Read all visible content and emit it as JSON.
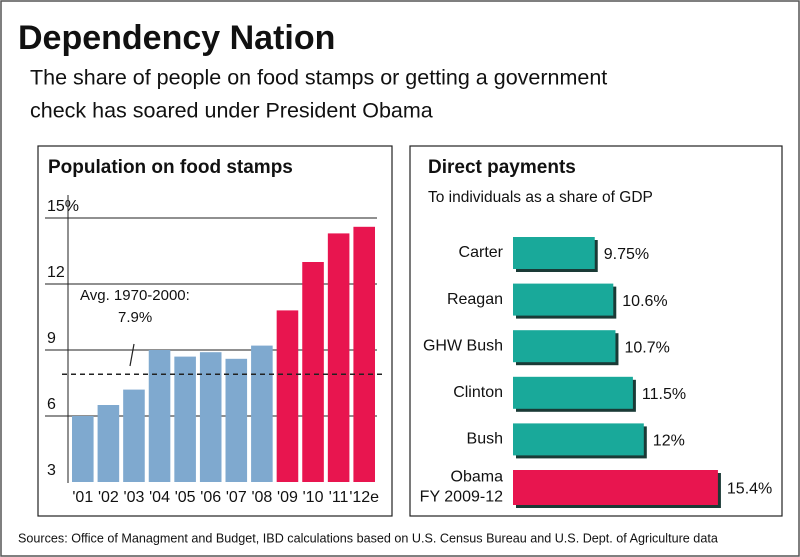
{
  "title": "Dependency Nation",
  "subtitle": [
    "The share of people on food stamps or getting a government",
    "check has soared under President Obama"
  ],
  "source": "Sources: Office of Managment and Budget, IBD calculations based on U.S. Census Bureau and U.S. Dept. of Agriculture data",
  "chart_data": [
    {
      "type": "bar",
      "title": "Population on food stamps",
      "categories": [
        "'01",
        "'02",
        "'03",
        "'04",
        "'05",
        "'06",
        "'07",
        "'08",
        "'09",
        "'10",
        "'11",
        "'12e"
      ],
      "values": [
        6.0,
        6.5,
        7.2,
        9.0,
        8.7,
        8.9,
        8.6,
        9.2,
        10.8,
        13.0,
        14.3,
        14.6
      ],
      "colors": [
        "#7fa9cf",
        "#7fa9cf",
        "#7fa9cf",
        "#7fa9cf",
        "#7fa9cf",
        "#7fa9cf",
        "#7fa9cf",
        "#7fa9cf",
        "#e8154f",
        "#e8154f",
        "#e8154f",
        "#e8154f"
      ],
      "ylim": [
        3,
        15
      ],
      "yticks": [
        3,
        6,
        9,
        12,
        {
          "value": 15,
          "label": "15%"
        }
      ],
      "grid": true,
      "reference_line": {
        "value": 7.9,
        "label": "7.9%",
        "note": "Avg. 1970-2000:"
      }
    },
    {
      "type": "barh",
      "title": "Direct payments",
      "subtitle": "To individuals as a share of GDP",
      "categories": [
        [
          "Carter"
        ],
        [
          "Reagan"
        ],
        [
          "GHW Bush"
        ],
        [
          "Clinton"
        ],
        [
          "Bush"
        ],
        [
          "Obama",
          "FY 2009-12"
        ]
      ],
      "values": [
        9.75,
        10.6,
        10.7,
        11.5,
        12,
        15.4
      ],
      "value_labels": [
        "9.75%",
        "10.6%",
        "10.7%",
        "11.5%",
        "12%",
        "15.4%"
      ],
      "colors": [
        "#19a99a",
        "#19a99a",
        "#19a99a",
        "#19a99a",
        "#19a99a",
        "#e8154f"
      ],
      "xlim": [
        6,
        16
      ]
    }
  ]
}
